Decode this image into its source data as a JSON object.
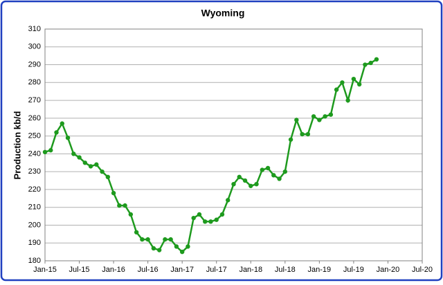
{
  "chart_data": {
    "type": "line",
    "title": "Wyoming",
    "y_label": "Production kb/d",
    "categories": [
      "Jan-15",
      null,
      null,
      null,
      null,
      null,
      "Jul-15",
      null,
      null,
      null,
      null,
      null,
      "Jan-16",
      null,
      null,
      null,
      null,
      null,
      "Jul-16",
      null,
      null,
      null,
      null,
      null,
      "Jan-17",
      null,
      null,
      null,
      null,
      null,
      "Jul-17",
      null,
      null,
      null,
      null,
      null,
      "Jan-18",
      null,
      null,
      null,
      null,
      null,
      "Jul-18",
      null,
      null,
      null,
      null,
      null,
      "Jan-19",
      null,
      null,
      null,
      null,
      null,
      "Jul-19",
      null,
      null,
      null,
      null,
      null,
      "Jan-20",
      null,
      null,
      null,
      null,
      null,
      "Jul-20"
    ],
    "series": [
      {
        "name": "Wyoming",
        "color": "#1e9a1e",
        "values": [
          241,
          242,
          252,
          257,
          249,
          240,
          238,
          235,
          233,
          234,
          230,
          227,
          218,
          211,
          211,
          206,
          196,
          192,
          192,
          187,
          186,
          192,
          192,
          188,
          185,
          188,
          204,
          206,
          202,
          202,
          203,
          206,
          214,
          223,
          227,
          225,
          222,
          223,
          231,
          232,
          228,
          226,
          230,
          248,
          259,
          251,
          251,
          261,
          259,
          261,
          262,
          276,
          280,
          270,
          282,
          279,
          290,
          291,
          293,
          null,
          null,
          null,
          null,
          null,
          null,
          null,
          null
        ]
      }
    ],
    "ylim": [
      180,
      310
    ],
    "yticks": [
      180,
      190,
      200,
      210,
      220,
      230,
      240,
      250,
      260,
      270,
      280,
      290,
      300,
      310
    ],
    "grid": true
  }
}
